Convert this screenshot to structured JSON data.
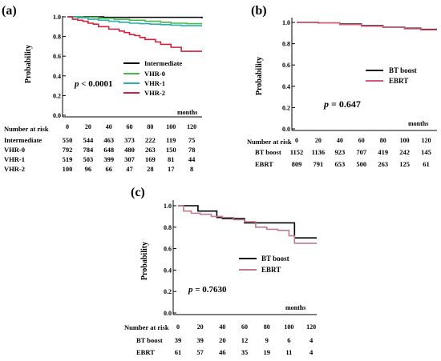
{
  "panels": {
    "a": {
      "label": "(a)",
      "ylabel": "Probability",
      "xlabel": "months",
      "p_prefix": "p",
      "p_value": "< 0.0001",
      "yticks": [
        "1.0",
        "0.8",
        "0.6",
        "0.4",
        "0.2",
        "0.0"
      ],
      "xticks": [
        "0",
        "20",
        "40",
        "60",
        "80",
        "100",
        "120"
      ],
      "legend": [
        "Intermediate",
        "VHR-0",
        "VHR-1",
        "VHR-2"
      ],
      "risk_title": "Number at risk",
      "risk_labels": [
        "Intermediate",
        "VHR-0",
        "VHR-1",
        "VHR-2"
      ],
      "risk": [
        [
          "550",
          "544",
          "463",
          "373",
          "222",
          "119",
          "75"
        ],
        [
          "792",
          "784",
          "648",
          "480",
          "263",
          "150",
          "78"
        ],
        [
          "519",
          "503",
          "399",
          "307",
          "169",
          "81",
          "44"
        ],
        [
          "100",
          "96",
          "66",
          "47",
          "28",
          "17",
          "8"
        ]
      ]
    },
    "b": {
      "label": "(b)",
      "ylabel": "Probability",
      "xlabel": "months",
      "p_prefix": "p",
      "p_value": "= 0.647",
      "yticks": [
        "1.0",
        "0.8",
        "0.6",
        "0.4",
        "0.2",
        "0.0"
      ],
      "xticks": [
        "0",
        "20",
        "40",
        "60",
        "80",
        "100",
        "120"
      ],
      "legend": [
        "BT boost",
        "EBRT"
      ],
      "risk_title": "Number at risk",
      "risk_labels": [
        "BT boost",
        "EBRT"
      ],
      "risk": [
        [
          "1152",
          "1136",
          "923",
          "707",
          "419",
          "242",
          "145"
        ],
        [
          "809",
          "791",
          "653",
          "500",
          "263",
          "125",
          "61"
        ]
      ]
    },
    "c": {
      "label": "(c)",
      "ylabel": "Probability",
      "xlabel": "months",
      "p_prefix": "p",
      "p_value": "= 0.7630",
      "yticks": [
        "1.0",
        "0.8",
        "0.6",
        "0.4",
        "0.2",
        "0.0"
      ],
      "xticks": [
        "0",
        "20",
        "40",
        "60",
        "80",
        "100",
        "120"
      ],
      "legend": [
        "BT boost",
        "EBRT"
      ],
      "risk_title": "Number at risk",
      "risk_labels": [
        "BT boost",
        "EBRT"
      ],
      "risk": [
        [
          "39",
          "39",
          "20",
          "12",
          "9",
          "6",
          "4"
        ],
        [
          "61",
          "57",
          "46",
          "35",
          "19",
          "11",
          "4"
        ]
      ]
    }
  },
  "chart_data": [
    {
      "type": "line",
      "panel": "a",
      "xlabel": "months",
      "ylabel": "Probability",
      "xlim": [
        0,
        130
      ],
      "ylim": [
        0,
        1.0
      ],
      "series": [
        {
          "name": "Intermediate",
          "color": "#000000",
          "x": [
            0,
            35,
            130
          ],
          "y": [
            1.0,
            0.995,
            0.985
          ]
        },
        {
          "name": "VHR-0",
          "color": "#49b848",
          "x": [
            0,
            15,
            30,
            45,
            60,
            75,
            90,
            100,
            115,
            130
          ],
          "y": [
            1.0,
            0.995,
            0.985,
            0.975,
            0.965,
            0.955,
            0.945,
            0.935,
            0.93,
            0.93
          ]
        },
        {
          "name": "VHR-1",
          "color": "#2aaeb0",
          "x": [
            0,
            10,
            20,
            30,
            40,
            50,
            60,
            70,
            80,
            90,
            100,
            110,
            120,
            130
          ],
          "y": [
            1.0,
            0.99,
            0.975,
            0.965,
            0.955,
            0.945,
            0.935,
            0.93,
            0.925,
            0.92,
            0.915,
            0.91,
            0.91,
            0.91
          ]
        },
        {
          "name": "VHR-2",
          "color": "#d41f3c",
          "x": [
            0,
            5,
            10,
            15,
            20,
            25,
            30,
            35,
            40,
            45,
            50,
            55,
            60,
            65,
            70,
            75,
            80,
            85,
            90,
            100,
            110,
            120,
            130
          ],
          "y": [
            1.0,
            0.975,
            0.965,
            0.955,
            0.935,
            0.925,
            0.9,
            0.9,
            0.875,
            0.875,
            0.855,
            0.84,
            0.82,
            0.81,
            0.79,
            0.77,
            0.77,
            0.745,
            0.72,
            0.69,
            0.65,
            0.65,
            0.65
          ]
        }
      ]
    },
    {
      "type": "line",
      "panel": "b",
      "xlabel": "months",
      "ylabel": "Probability",
      "xlim": [
        0,
        130
      ],
      "ylim": [
        0,
        1.0
      ],
      "series": [
        {
          "name": "BT boost",
          "color": "#000000",
          "x": [
            0,
            20,
            40,
            60,
            80,
            100,
            115,
            130
          ],
          "y": [
            1.0,
            0.995,
            0.985,
            0.97,
            0.955,
            0.945,
            0.935,
            0.935
          ]
        },
        {
          "name": "EBRT",
          "color": "#d9587a",
          "x": [
            0,
            20,
            40,
            60,
            80,
            100,
            115,
            130
          ],
          "y": [
            1.0,
            0.995,
            0.98,
            0.965,
            0.955,
            0.94,
            0.93,
            0.93
          ]
        }
      ]
    },
    {
      "type": "line",
      "panel": "c",
      "xlabel": "months",
      "ylabel": "Probability",
      "xlim": [
        0,
        125
      ],
      "ylim": [
        0,
        1.0
      ],
      "series": [
        {
          "name": "BT boost",
          "color": "#000000",
          "x": [
            0,
            15,
            18,
            35,
            40,
            60,
            70,
            100,
            105,
            125
          ],
          "y": [
            1.0,
            1.0,
            0.95,
            0.89,
            0.88,
            0.84,
            0.84,
            0.84,
            0.7,
            0.7
          ]
        },
        {
          "name": "EBRT",
          "color": "#c07a8c",
          "x": [
            0,
            5,
            12,
            20,
            30,
            40,
            50,
            60,
            70,
            80,
            90,
            100,
            105,
            125
          ],
          "y": [
            1.0,
            0.95,
            0.93,
            0.92,
            0.9,
            0.89,
            0.87,
            0.85,
            0.8,
            0.78,
            0.77,
            0.72,
            0.65,
            0.65
          ]
        }
      ]
    }
  ]
}
